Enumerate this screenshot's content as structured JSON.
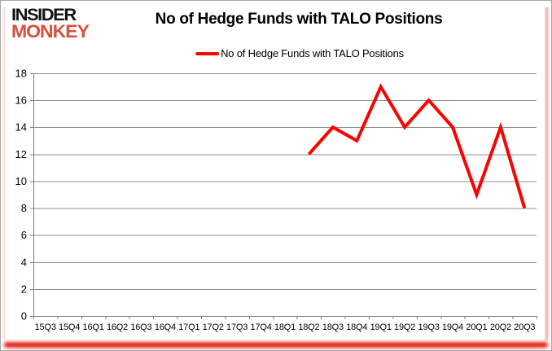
{
  "logo": {
    "line1": "INSIDER",
    "line2": "MONKEY",
    "color1": "#141414",
    "color2": "#d8503a"
  },
  "header": {
    "title": "No of Hedge Funds with TALO Positions"
  },
  "legend": {
    "label": "No of Hedge Funds with TALO Positions",
    "marker_color": "#ff0000"
  },
  "chart_data": {
    "type": "line",
    "title": "No of Hedge Funds with TALO Positions",
    "categories": [
      "15Q3",
      "15Q4",
      "16Q1",
      "16Q2",
      "16Q3",
      "16Q4",
      "17Q1",
      "17Q2",
      "17Q3",
      "17Q4",
      "18Q1",
      "18Q2",
      "18Q3",
      "18Q4",
      "19Q1",
      "19Q2",
      "19Q3",
      "19Q4",
      "20Q1",
      "20Q2",
      "20Q3"
    ],
    "series": [
      {
        "name": "No of Hedge Funds with TALO Positions",
        "color": "#ff0000",
        "start_index": 11,
        "x": [
          "18Q2",
          "18Q3",
          "18Q4",
          "19Q1",
          "19Q2",
          "19Q3",
          "19Q4",
          "20Q1",
          "20Q2",
          "20Q3"
        ],
        "values": [
          12,
          14,
          13,
          17,
          14,
          16,
          14,
          9,
          14,
          8
        ]
      }
    ],
    "xlabel": "",
    "ylabel": "",
    "ylim": [
      0,
      18
    ],
    "ytick_step": 2,
    "grid": true,
    "legend_position": "top",
    "colors": {
      "gridline": "#8c8c8c",
      "axis": "#7f7f7f",
      "tick_label": "#000000"
    }
  }
}
